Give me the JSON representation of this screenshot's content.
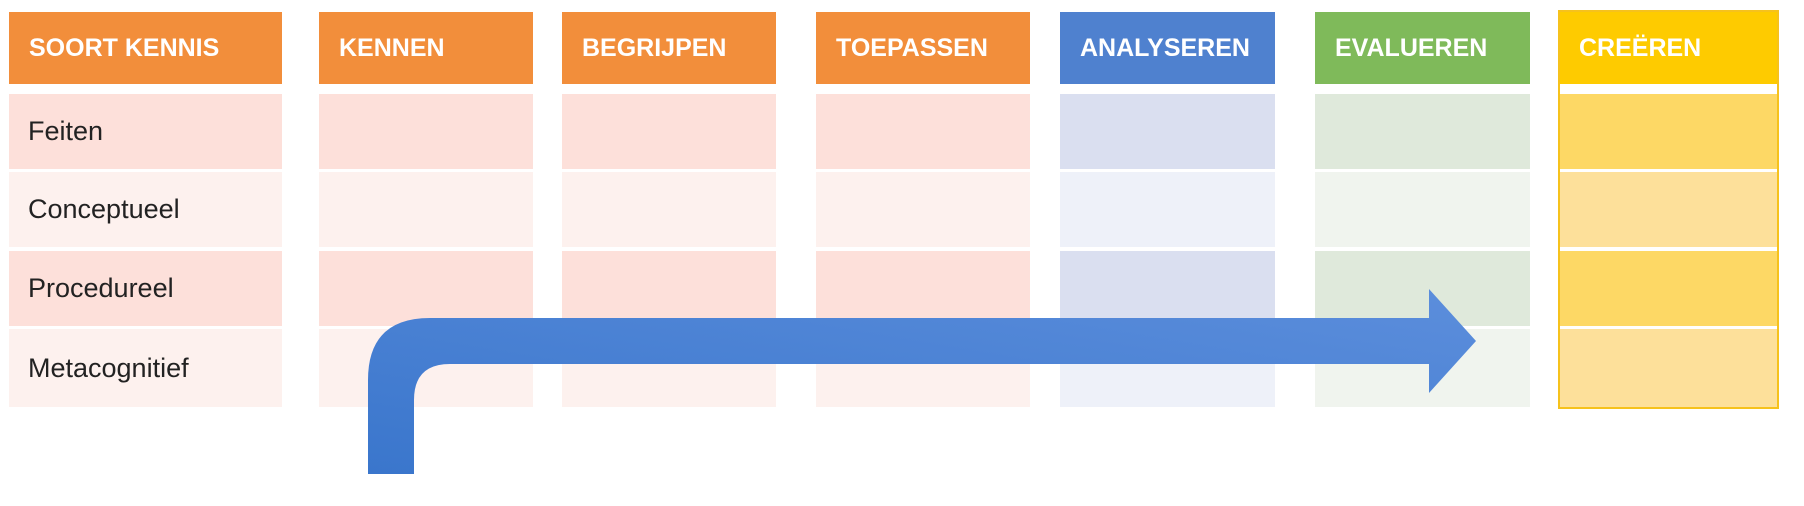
{
  "table": {
    "header": [
      "SOORT KENNIS",
      "KENNEN",
      "BEGRIJPEN",
      "TOEPASSEN",
      "ANALYSEREN",
      "EVALUEREN",
      "CREËREN"
    ],
    "rows": [
      "Feiten",
      "Conceptueel",
      "Procedureel",
      "Metacognitief"
    ]
  }
}
